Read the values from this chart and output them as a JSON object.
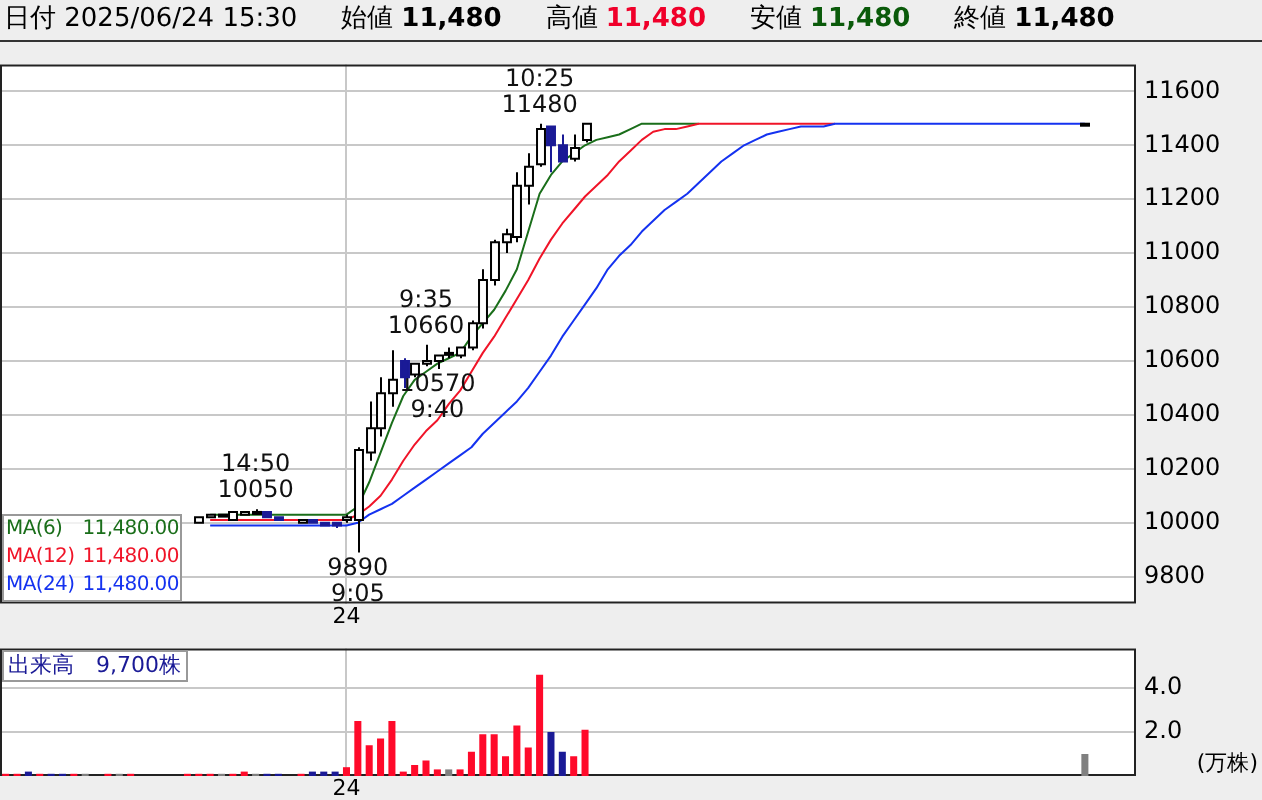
{
  "chart_data": [
    {
      "type": "candlestick",
      "title": "日付 2025/06/24 15:30",
      "annotations": [
        "始値 11,480",
        "高値 11,480",
        "安値 11,480",
        "終値 11,480",
        {
          "text": "14:50\n10050",
          "y": 10050
        },
        {
          "text": "9890\n9:05",
          "y": 9890
        },
        {
          "text": "9:35\n10660",
          "y": 10660
        },
        {
          "text": "10570\n9:40",
          "y": 10570
        },
        {
          "text": "10:25\n11480",
          "y": 11480
        }
      ],
      "categories": [
        null,
        null,
        null,
        null,
        null,
        null,
        null,
        null,
        null,
        null,
        null,
        null,
        null,
        null,
        null,
        null,
        null,
        null,
        null,
        null,
        null,
        null,
        null,
        null,
        null,
        null,
        null,
        null,
        null,
        null,
        "24",
        null,
        null,
        null,
        null,
        null,
        null,
        null,
        null,
        null,
        null,
        null,
        null,
        null,
        null,
        null,
        null,
        null,
        null,
        null,
        null,
        null,
        null,
        null,
        null,
        null,
        null,
        null,
        null,
        null,
        null,
        null,
        null,
        null,
        null,
        null,
        null,
        null,
        null,
        null,
        null,
        null,
        null,
        null,
        null,
        null,
        null,
        null,
        null,
        null,
        null,
        null,
        null,
        null,
        null,
        null,
        null,
        null,
        null,
        null,
        null,
        null,
        null,
        null,
        null,
        null,
        null,
        null,
        null,
        null
      ],
      "ohlc": [
        null,
        null,
        null,
        null,
        null,
        null,
        null,
        null,
        null,
        null,
        null,
        null,
        null,
        null,
        null,
        null,
        null,
        [
          10000,
          10020,
          10000,
          10020
        ],
        [
          10020,
          10030,
          10020,
          10030
        ],
        [
          10030,
          10030,
          10030,
          10030
        ],
        [
          10010,
          10040,
          10010,
          10040
        ],
        [
          10030,
          10040,
          10030,
          10040
        ],
        [
          10040,
          10050,
          10030,
          10040
        ],
        [
          10040,
          10040,
          10020,
          10020
        ],
        [
          10020,
          10020,
          10010,
          10010
        ],
        null,
        [
          10000,
          10010,
          10000,
          10010
        ],
        [
          10010,
          10010,
          10000,
          10000
        ],
        [
          10000,
          10000,
          9990,
          9990
        ],
        [
          10000,
          10000,
          9980,
          9990
        ],
        [
          10010,
          10030,
          10000,
          10020
        ],
        [
          10010,
          10280,
          9890,
          10270
        ],
        [
          10260,
          10450,
          10230,
          10350
        ],
        [
          10350,
          10540,
          10320,
          10480
        ],
        [
          10480,
          10640,
          10430,
          10530
        ],
        [
          10600,
          10610,
          10500,
          10540
        ],
        [
          10550,
          10590,
          10540,
          10590
        ],
        [
          10590,
          10660,
          10580,
          10600
        ],
        [
          10600,
          10620,
          10570,
          10620
        ],
        [
          10630,
          10650,
          10610,
          10630
        ],
        [
          10620,
          10650,
          10610,
          10650
        ],
        [
          10650,
          10750,
          10640,
          10740
        ],
        [
          10740,
          10940,
          10720,
          10900
        ],
        [
          10900,
          11050,
          10880,
          11040
        ],
        [
          11040,
          11090,
          11000,
          11070
        ],
        [
          11060,
          11300,
          11040,
          11250
        ],
        [
          11250,
          11370,
          11180,
          11320
        ],
        [
          11330,
          11480,
          11320,
          11460
        ],
        [
          11470,
          11470,
          11300,
          11400
        ],
        [
          11400,
          11440,
          11340,
          11340
        ],
        [
          11350,
          11440,
          11340,
          11390
        ],
        [
          11420,
          11480,
          11410,
          11480
        ],
        null,
        null,
        null,
        null,
        null,
        null,
        null,
        null,
        null,
        null,
        null,
        null,
        null,
        null,
        null,
        null,
        null,
        null,
        null,
        null,
        null,
        null,
        null,
        null,
        null,
        null,
        null,
        null,
        null,
        null,
        null,
        null,
        null,
        null,
        null,
        null,
        null,
        null,
        null,
        null,
        null,
        null,
        null,
        [
          11480,
          11480,
          11480,
          11480
        ],
        null,
        null,
        null,
        null
      ],
      "series": [
        {
          "type": "line",
          "name": "MA(6) 11,480.00",
          "color": "#1a6e1a",
          "values": [
            null,
            null,
            null,
            null,
            null,
            null,
            null,
            null,
            null,
            null,
            null,
            null,
            null,
            null,
            null,
            null,
            null,
            null,
            10030,
            10030,
            10030,
            10030,
            10030,
            10030,
            10030,
            10030,
            10030,
            10030,
            10030,
            10030,
            10030,
            10060,
            10150,
            10260,
            10370,
            10470,
            10530,
            10560,
            10590,
            10610,
            10630,
            10690,
            10740,
            10790,
            10860,
            10940,
            11080,
            11220,
            11290,
            11340,
            11370,
            11400,
            11420,
            11430,
            11440,
            11460,
            11480,
            11480,
            11480,
            11480,
            11480,
            11480,
            null,
            null,
            null,
            null,
            null,
            null,
            null,
            null,
            null,
            null,
            null,
            null,
            null,
            null,
            null,
            null,
            null,
            null,
            null,
            null,
            null,
            null,
            null,
            null,
            null,
            null,
            null,
            null,
            null,
            null,
            null,
            null,
            null,
            null,
            null,
            null,
            null,
            null
          ]
        },
        {
          "type": "line",
          "name": "MA(12) 11,480.00",
          "color": "#f01428",
          "values": [
            null,
            null,
            null,
            null,
            null,
            null,
            null,
            null,
            null,
            null,
            null,
            null,
            null,
            null,
            null,
            null,
            null,
            null,
            10010,
            10010,
            10010,
            10010,
            10010,
            10010,
            10010,
            10010,
            10010,
            10010,
            10010,
            10010,
            10010,
            10030,
            10060,
            10100,
            10160,
            10230,
            10290,
            10340,
            10380,
            10440,
            10490,
            10560,
            10630,
            10690,
            10760,
            10830,
            10900,
            10980,
            11050,
            11110,
            11160,
            11210,
            11250,
            11290,
            11340,
            11380,
            11420,
            11450,
            11460,
            11460,
            11470,
            11480,
            11480,
            11480,
            11480,
            11480,
            11480,
            11480,
            11480,
            11480,
            11480,
            11480,
            11480,
            11480,
            null,
            null,
            null,
            null,
            null,
            null,
            null,
            null,
            null,
            null,
            null,
            null,
            null,
            null,
            null,
            null,
            null,
            null,
            null,
            null,
            null,
            null,
            null,
            null,
            null,
            null
          ]
        },
        {
          "type": "line",
          "name": "MA(24) 11,480.00",
          "color": "#1432f0",
          "values": [
            null,
            null,
            null,
            null,
            null,
            null,
            null,
            null,
            null,
            null,
            null,
            null,
            null,
            null,
            null,
            null,
            null,
            null,
            9990,
            9990,
            9990,
            9990,
            9990,
            9990,
            9990,
            9990,
            9990,
            9990,
            9990,
            9990,
            9990,
            10000,
            10030,
            10050,
            10070,
            10100,
            10130,
            10160,
            10190,
            10220,
            10250,
            10280,
            10330,
            10370,
            10410,
            10450,
            10500,
            10560,
            10620,
            10690,
            10750,
            10810,
            10870,
            10940,
            10990,
            11030,
            11080,
            11120,
            11160,
            11190,
            11220,
            11260,
            11300,
            11340,
            11370,
            11400,
            11420,
            11440,
            11450,
            11460,
            11470,
            11470,
            11470,
            11480,
            11480,
            11480,
            11480,
            11480,
            11480,
            11480,
            11480,
            11480,
            11480,
            11480,
            11480,
            11480,
            11480,
            11480,
            11480,
            11480,
            11480,
            11480,
            11480,
            11480,
            11480,
            11480,
            null,
            null,
            null,
            null
          ]
        }
      ],
      "ylim": [
        9700,
        11700
      ],
      "yticks": [
        9800,
        10000,
        10200,
        10400,
        10600,
        10800,
        11000,
        11200,
        11400,
        11600
      ],
      "grid": true,
      "legend": "bottom left",
      "marker": "none",
      "line_style": "solid"
    },
    {
      "type": "bar",
      "title": "出来高　9,700株",
      "ylabel": "(万株)",
      "categories": [
        null,
        null,
        null,
        null,
        null,
        null,
        null,
        null,
        null,
        null,
        null,
        null,
        null,
        null,
        null,
        null,
        null,
        null,
        null,
        null,
        null,
        null,
        null,
        null,
        null,
        null,
        null,
        null,
        null,
        null,
        "24",
        null,
        null,
        null,
        null,
        null,
        null,
        null,
        null,
        null,
        null,
        null,
        null,
        null,
        null,
        null,
        null,
        null,
        null,
        null,
        null,
        null,
        null,
        null,
        null,
        null,
        null,
        null,
        null,
        null,
        null,
        null,
        null,
        null,
        null,
        null,
        null,
        null,
        null,
        null,
        null,
        null,
        null,
        null,
        null,
        null,
        null,
        null,
        null,
        null,
        null,
        null,
        null,
        null,
        null,
        null,
        null,
        null,
        null,
        null,
        null,
        null,
        null,
        null,
        null,
        null,
        null,
        null,
        null,
        null
      ],
      "values": [
        0.1,
        0.1,
        0.2,
        0.1,
        0.1,
        0.1,
        0.1,
        0.1,
        null,
        0.1,
        0.1,
        0.1,
        null,
        null,
        null,
        null,
        0.1,
        0.1,
        0.1,
        0.1,
        0.1,
        0.2,
        0.1,
        0.1,
        0.1,
        null,
        0.1,
        0.2,
        0.2,
        0.2,
        0.4,
        2.5,
        1.4,
        1.7,
        2.5,
        0.2,
        0.5,
        0.7,
        0.3,
        0.3,
        0.3,
        1.1,
        1.9,
        1.9,
        0.9,
        2.3,
        1.3,
        4.6,
        2.0,
        1.1,
        0.9,
        2.1,
        null,
        null,
        null,
        null,
        null,
        null,
        null,
        null,
        null,
        null,
        null,
        null,
        null,
        null,
        null,
        null,
        null,
        null,
        null,
        null,
        null,
        null,
        null,
        null,
        null,
        null,
        null,
        null,
        null,
        null,
        null,
        null,
        null,
        null,
        null,
        null,
        null,
        null,
        null,
        null,
        null,
        null,
        null,
        1.0,
        null,
        null,
        null,
        null
      ],
      "colors": [
        "#ff0a2a",
        "#ff0a2a",
        "#1a1a96",
        "#ff0a2a",
        "#1a1a96",
        "#1a1a96",
        "#ff0a2a",
        "#808080",
        null,
        "#ff0a2a",
        "#808080",
        "#ff0a2a",
        null,
        null,
        null,
        null,
        "#ff0a2a",
        "#ff0a2a",
        "#ff0a2a",
        "#808080",
        "#ff0a2a",
        "#ff0a2a",
        "#808080",
        "#1a1a96",
        "#1a1a96",
        null,
        "#ff0a2a",
        "#1a1a96",
        "#1a1a96",
        "#1a1a96",
        "#ff0a2a",
        "#ff0a2a",
        "#ff0a2a",
        "#ff0a2a",
        "#ff0a2a",
        "#ff0a2a",
        "#ff0a2a",
        "#ff0a2a",
        "#ff0a2a",
        "#808080",
        "#ff0a2a",
        "#ff0a2a",
        "#ff0a2a",
        "#ff0a2a",
        "#ff0a2a",
        "#ff0a2a",
        "#ff0a2a",
        "#ff0a2a",
        "#1a1a96",
        "#1a1a96",
        "#ff0a2a",
        "#ff0a2a",
        null,
        null,
        null,
        null,
        null,
        null,
        null,
        null,
        null,
        null,
        null,
        null,
        null,
        null,
        null,
        null,
        null,
        null,
        null,
        null,
        null,
        null,
        null,
        null,
        null,
        null,
        null,
        null,
        null,
        null,
        null,
        null,
        null,
        null,
        null,
        null,
        null,
        null,
        null,
        null,
        null,
        null,
        null,
        "#808080",
        null,
        null,
        null,
        null
      ],
      "ylim": [
        0,
        5.8
      ],
      "yticks": [
        {
          "value": 2,
          "label": "2.0"
        },
        {
          "value": 4,
          "label": "4.0"
        }
      ],
      "grid": true
    }
  ]
}
